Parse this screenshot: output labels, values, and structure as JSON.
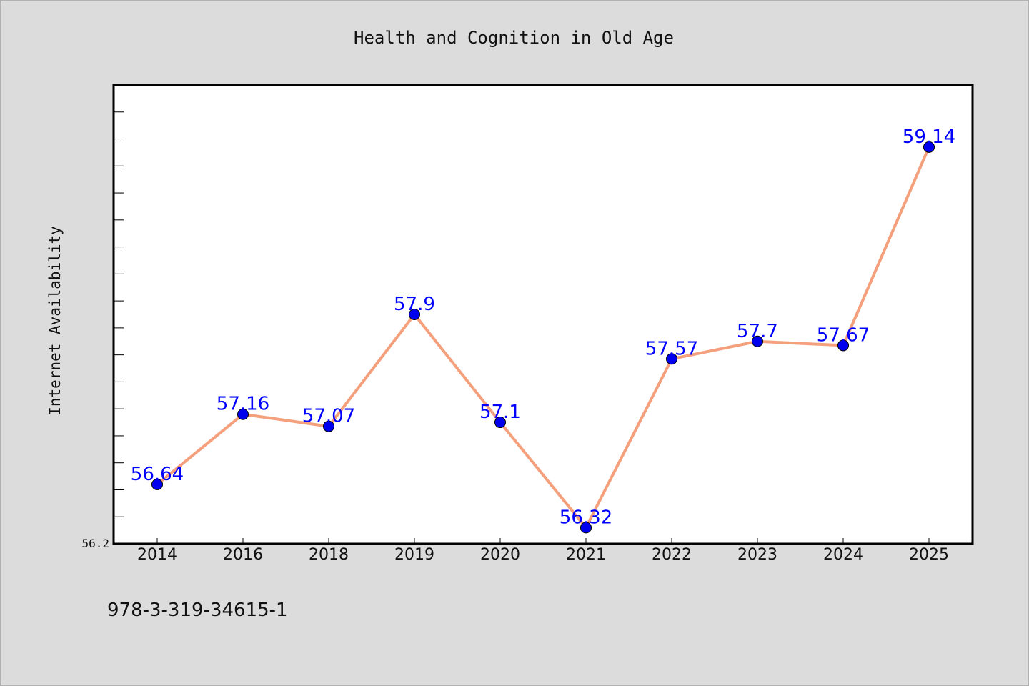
{
  "chart_data": {
    "type": "line",
    "title": "Health and Cognition in Old Age",
    "xlabel": "",
    "ylabel": "Internet Availability",
    "categories": [
      "2014",
      "2016",
      "2018",
      "2019",
      "2020",
      "2021",
      "2022",
      "2023",
      "2024",
      "2025"
    ],
    "series": [
      {
        "values": [
          56.64,
          57.16,
          57.07,
          57.9,
          57.1,
          56.32,
          57.57,
          57.7,
          57.67,
          59.14
        ],
        "value_labels": [
          "56.64",
          "57.16",
          "57.07",
          "57.9",
          "57.1",
          "56.32",
          "57.57",
          "57.7",
          "57.67",
          "59.14"
        ]
      }
    ],
    "y_tick_labels": [
      "56.2"
    ],
    "ylim": [
      56.2,
      59.6
    ],
    "grid": false,
    "line_color": "#f4a07c",
    "marker_color": "#0000ee",
    "label_color": "#0000ff"
  },
  "footnote": "978-3-319-34615-1"
}
